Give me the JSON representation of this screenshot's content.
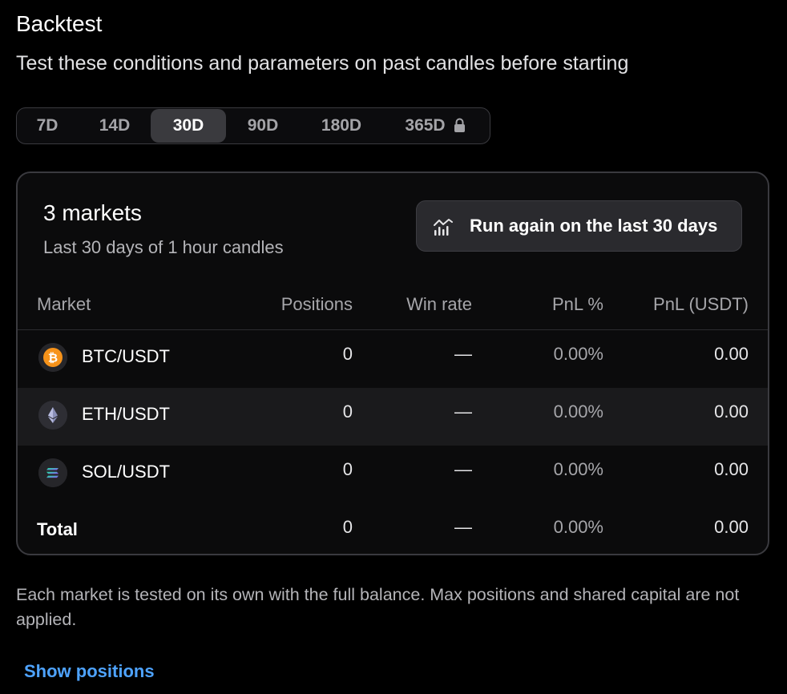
{
  "header": {
    "title": "Backtest",
    "subtitle": "Test these conditions and parameters on past candles before starting"
  },
  "tabs": [
    {
      "label": "7D",
      "selected": false,
      "locked": false
    },
    {
      "label": "14D",
      "selected": false,
      "locked": false
    },
    {
      "label": "30D",
      "selected": true,
      "locked": false
    },
    {
      "label": "90D",
      "selected": false,
      "locked": false
    },
    {
      "label": "180D",
      "selected": false,
      "locked": false
    },
    {
      "label": "365D",
      "selected": false,
      "locked": true,
      "icon": "lock-icon"
    }
  ],
  "card": {
    "title": "3 markets",
    "subtitle": "Last 30 days of 1 hour candles",
    "run_button": {
      "label": "Run again on the last 30 days",
      "icon": "chart-icon"
    },
    "columns": [
      "Market",
      "Positions",
      "Win rate",
      "PnL %",
      "PnL (USDT)"
    ],
    "rows": [
      {
        "market": "BTC/USDT",
        "icon": "bitcoin-icon",
        "positions": "0",
        "win_rate": "—",
        "pnl_pct": "0.00%",
        "pnl_usdt": "0.00"
      },
      {
        "market": "ETH/USDT",
        "icon": "ethereum-icon",
        "positions": "0",
        "win_rate": "—",
        "pnl_pct": "0.00%",
        "pnl_usdt": "0.00"
      },
      {
        "market": "SOL/USDT",
        "icon": "solana-icon",
        "positions": "0",
        "win_rate": "—",
        "pnl_pct": "0.00%",
        "pnl_usdt": "0.00"
      }
    ],
    "total": {
      "label": "Total",
      "positions": "0",
      "win_rate": "—",
      "pnl_pct": "0.00%",
      "pnl_usdt": "0.00"
    }
  },
  "note": "Each market is tested on its own with the full balance. Max positions and shared capital are not applied.",
  "show_positions_label": "Show positions",
  "colors": {
    "background": "#000000",
    "card": "#0b0b0c",
    "border": "#3a3a3f",
    "link": "#4ea3ff",
    "bitcoin": "#f7931a"
  }
}
